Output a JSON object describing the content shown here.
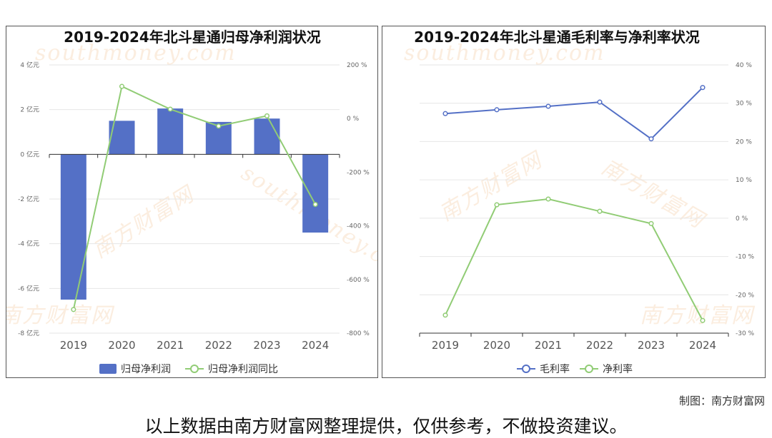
{
  "watermark": {
    "cn": "南方财富网",
    "en": "southmoney.com"
  },
  "credit": "制图：南方财富网",
  "footer": "以上数据由南方财富网整理提供，仅供参考，不做投资建议。",
  "colors": {
    "bar": "#5470c6",
    "green": "#91cc75",
    "axis": "#333333",
    "grid": "#e6e6e6"
  },
  "chart_data": [
    {
      "type": "bar",
      "title": "2019-2024年北斗星通归母净利润状况",
      "categories": [
        "2019",
        "2020",
        "2021",
        "2022",
        "2023",
        "2024"
      ],
      "y_left": {
        "ticks": [
          "4 亿元",
          "2 亿元",
          "0 亿元",
          "-2 亿元",
          "-4 亿元",
          "-6 亿元",
          "-8 亿元"
        ],
        "range": [
          -8,
          4
        ]
      },
      "y_right": {
        "ticks": [
          "200 %",
          "0 %",
          "-200 %",
          "-400 %",
          "-600 %",
          "-800 %"
        ],
        "range": [
          -800,
          200
        ]
      },
      "series": [
        {
          "name": "归母净利润",
          "kind": "bar",
          "axis": "left",
          "values": [
            -6.5,
            1.5,
            2.05,
            1.45,
            1.6,
            -3.5
          ]
        },
        {
          "name": "归母净利润同比",
          "kind": "line",
          "axis": "right",
          "values": [
            -712,
            120,
            35,
            -28,
            10,
            -320
          ]
        }
      ],
      "legend": "bottom-center",
      "grid": true
    },
    {
      "type": "line",
      "title": "2019-2024年北斗星通毛利率与净利率状况",
      "categories": [
        "2019",
        "2020",
        "2021",
        "2022",
        "2023",
        "2024"
      ],
      "y_right": {
        "ticks": [
          "40 %",
          "30 %",
          "20 %",
          "10 %",
          "0 %",
          "-10 %",
          "-20 %",
          "-30 %"
        ],
        "range": [
          -30,
          40
        ]
      },
      "series": [
        {
          "name": "毛利率",
          "kind": "line",
          "values": [
            27.3,
            28.3,
            29.2,
            30.3,
            20.7,
            34.1
          ]
        },
        {
          "name": "净利率",
          "kind": "line",
          "values": [
            -25.3,
            3.5,
            5.0,
            1.8,
            -1.4,
            -26.7
          ]
        }
      ],
      "legend": "bottom-center",
      "grid": true
    }
  ]
}
